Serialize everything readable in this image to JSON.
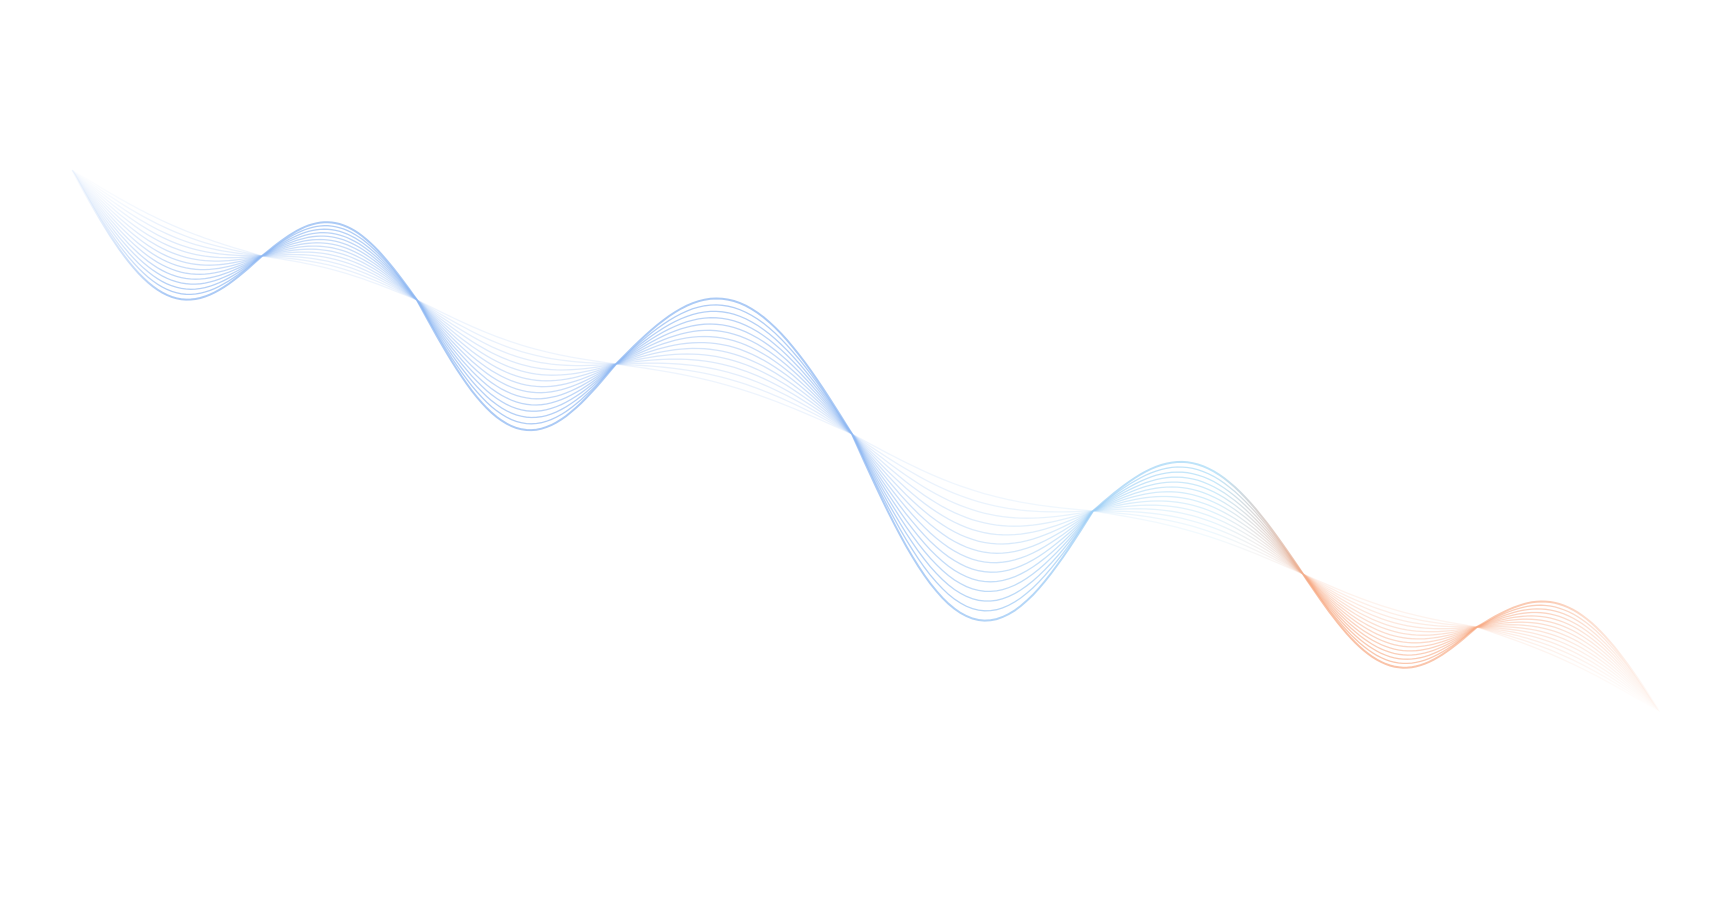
{
  "background_color": "#ffffff",
  "colors": {
    "wave_blue": "#8fb8f2",
    "wave_cyan": "#a9dcf7",
    "wave_orange": "#f7a983"
  },
  "wave": {
    "line_count": 14
  }
}
